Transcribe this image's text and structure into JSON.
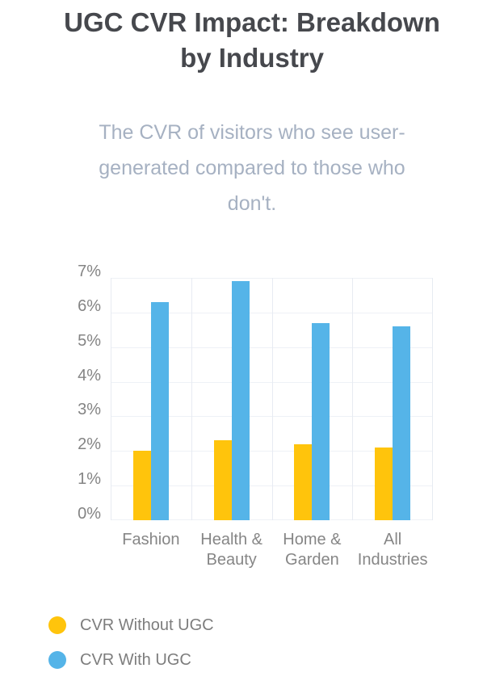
{
  "title_lines": [
    "UGC CVR Impact: Breakdown",
    "by Industry"
  ],
  "subtitle_lines": [
    "The CVR of visitors who see user-",
    "generated compared to those who",
    "don't."
  ],
  "colors": {
    "title": "#46484D",
    "subtitle": "#A6B1C2",
    "axis_label": "#848484",
    "legend_label": "#7D7D7D",
    "gridline_h": "#EEF1F6",
    "gridline_v": "#E7EBF2",
    "without_ugc": "#FFC40C",
    "with_ugc": "#55B4E8"
  },
  "chart_data": {
    "type": "bar",
    "title": "UGC CVR Impact: Breakdown by Industry",
    "subtitle": "The CVR of visitors who see user-generated compared to those who don't.",
    "categories": [
      "Fashion",
      "Health & Beauty",
      "Home & Garden",
      "All Industries"
    ],
    "series": [
      {
        "name": "CVR Without UGC",
        "color": "#FFC40C",
        "values": [
          2.0,
          2.3,
          2.2,
          2.1
        ]
      },
      {
        "name": "CVR With UGC",
        "color": "#55B4E8",
        "values": [
          6.3,
          6.9,
          5.7,
          5.6
        ]
      }
    ],
    "xlabel": "",
    "ylabel": "",
    "ylim": [
      0,
      7
    ],
    "ytick_step": 1,
    "yticks": [
      "0%",
      "1%",
      "2%",
      "3%",
      "4%",
      "5%",
      "6%",
      "7%"
    ],
    "grid": true,
    "legend_position": "bottom-left"
  },
  "legend": {
    "items": [
      {
        "label": "CVR Without UGC",
        "color": "#FFC40C"
      },
      {
        "label": "CVR With UGC",
        "color": "#55B4E8"
      }
    ]
  }
}
